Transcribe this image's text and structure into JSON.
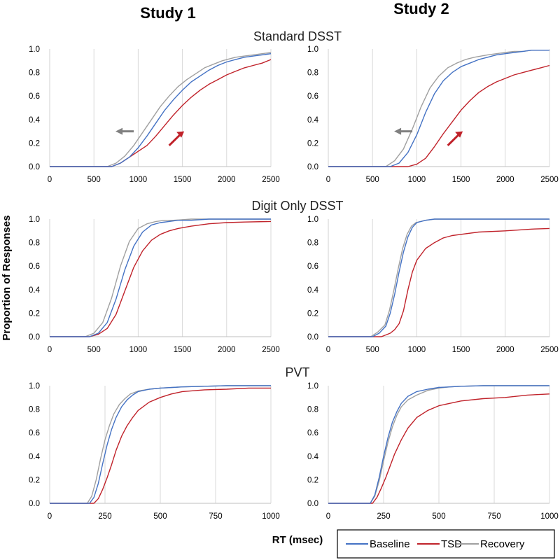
{
  "columns": [
    "Study 1",
    "Study 2"
  ],
  "rows": [
    "Standard DSST",
    "Digit Only DSST",
    "PVT"
  ],
  "y_axis_label": "Proportion of Responses",
  "x_axis_label": "RT (msec)",
  "legend": [
    {
      "name": "Baseline",
      "color": "#4472c4"
    },
    {
      "name": "TSD",
      "color": "#c0222a"
    },
    {
      "name": "Recovery",
      "color": "#a0a0a0"
    }
  ],
  "arrow_colors": {
    "left": "#808080",
    "right": "#c0222a"
  },
  "chart_data": [
    {
      "type": "line",
      "study": "Study 1",
      "title": "Standard DSST",
      "xlim": [
        0,
        2500
      ],
      "ylim": [
        0,
        1
      ],
      "xticks": [
        0,
        500,
        1000,
        1500,
        2000,
        2500
      ],
      "yticks": [
        0.0,
        0.2,
        0.4,
        0.6,
        0.8,
        1.0
      ],
      "arrows": true,
      "series": [
        {
          "name": "Baseline",
          "x": [
            0,
            700,
            800,
            900,
            1000,
            1100,
            1200,
            1300,
            1400,
            1500,
            1600,
            1700,
            1800,
            1900,
            2000,
            2100,
            2200,
            2300,
            2400,
            2500
          ],
          "y": [
            0,
            0,
            0.03,
            0.08,
            0.16,
            0.26,
            0.37,
            0.48,
            0.57,
            0.65,
            0.72,
            0.77,
            0.82,
            0.86,
            0.89,
            0.91,
            0.93,
            0.94,
            0.95,
            0.96
          ]
        },
        {
          "name": "TSD",
          "x": [
            0,
            700,
            800,
            900,
            1000,
            1100,
            1200,
            1300,
            1400,
            1500,
            1600,
            1700,
            1800,
            1900,
            2000,
            2100,
            2200,
            2300,
            2400,
            2500
          ],
          "y": [
            0,
            0,
            0.03,
            0.08,
            0.13,
            0.18,
            0.26,
            0.35,
            0.44,
            0.52,
            0.59,
            0.65,
            0.7,
            0.74,
            0.78,
            0.81,
            0.84,
            0.86,
            0.88,
            0.91
          ]
        },
        {
          "name": "Recovery",
          "x": [
            0,
            650,
            750,
            850,
            950,
            1050,
            1150,
            1250,
            1350,
            1450,
            1550,
            1650,
            1750,
            1850,
            1950,
            2100,
            2200,
            2300,
            2400,
            2500
          ],
          "y": [
            0,
            0,
            0.03,
            0.09,
            0.18,
            0.29,
            0.4,
            0.51,
            0.6,
            0.68,
            0.74,
            0.79,
            0.84,
            0.87,
            0.9,
            0.93,
            0.94,
            0.95,
            0.96,
            0.97
          ]
        }
      ]
    },
    {
      "type": "line",
      "study": "Study 2",
      "title": "Standard DSST",
      "xlim": [
        0,
        2500
      ],
      "ylim": [
        0,
        1
      ],
      "xticks": [
        0,
        500,
        1000,
        1500,
        2000,
        2500
      ],
      "yticks": [
        0.0,
        0.2,
        0.4,
        0.6,
        0.8,
        1.0
      ],
      "arrows": true,
      "series": [
        {
          "name": "Baseline",
          "x": [
            0,
            700,
            800,
            900,
            1000,
            1100,
            1200,
            1300,
            1400,
            1500,
            1600,
            1700,
            1800,
            1900,
            2000,
            2100,
            2200,
            2300,
            2400,
            2500
          ],
          "y": [
            0,
            0,
            0.03,
            0.12,
            0.27,
            0.46,
            0.62,
            0.73,
            0.8,
            0.85,
            0.88,
            0.91,
            0.93,
            0.95,
            0.96,
            0.97,
            0.98,
            0.99,
            0.99,
            0.99
          ]
        },
        {
          "name": "TSD",
          "x": [
            0,
            900,
            1000,
            1100,
            1200,
            1300,
            1400,
            1500,
            1600,
            1700,
            1800,
            1900,
            2000,
            2100,
            2200,
            2300,
            2400,
            2500
          ],
          "y": [
            0,
            0,
            0.02,
            0.07,
            0.17,
            0.28,
            0.38,
            0.48,
            0.56,
            0.63,
            0.68,
            0.72,
            0.75,
            0.78,
            0.8,
            0.82,
            0.84,
            0.86
          ]
        },
        {
          "name": "Recovery",
          "x": [
            0,
            650,
            750,
            850,
            950,
            1050,
            1150,
            1250,
            1350,
            1450,
            1550,
            1650,
            1800,
            1900,
            2000,
            2100,
            2200,
            2300,
            2400,
            2500
          ],
          "y": [
            0,
            0,
            0.05,
            0.15,
            0.32,
            0.51,
            0.67,
            0.77,
            0.84,
            0.88,
            0.91,
            0.93,
            0.95,
            0.96,
            0.97,
            0.98,
            0.98,
            0.99,
            0.99,
            0.99
          ]
        }
      ]
    },
    {
      "type": "line",
      "study": "Study 1",
      "title": "Digit Only DSST",
      "xlim": [
        0,
        2500
      ],
      "ylim": [
        0,
        1
      ],
      "xticks": [
        0,
        500,
        1000,
        1500,
        2000,
        2500
      ],
      "yticks": [
        0.0,
        0.2,
        0.4,
        0.6,
        0.8,
        1.0
      ],
      "arrows": false,
      "series": [
        {
          "name": "Baseline",
          "x": [
            0,
            450,
            550,
            650,
            750,
            850,
            950,
            1050,
            1150,
            1250,
            1350,
            1450,
            1600,
            1800,
            2000,
            2200,
            2500
          ],
          "y": [
            0,
            0,
            0.03,
            0.12,
            0.32,
            0.57,
            0.77,
            0.89,
            0.95,
            0.97,
            0.98,
            0.99,
            0.99,
            1.0,
            1.0,
            1.0,
            1.0
          ]
        },
        {
          "name": "TSD",
          "x": [
            0,
            450,
            550,
            650,
            750,
            850,
            950,
            1050,
            1150,
            1250,
            1350,
            1450,
            1600,
            1800,
            2000,
            2200,
            2500
          ],
          "y": [
            0,
            0,
            0.02,
            0.07,
            0.19,
            0.39,
            0.59,
            0.73,
            0.82,
            0.87,
            0.9,
            0.92,
            0.94,
            0.96,
            0.97,
            0.975,
            0.98
          ]
        },
        {
          "name": "Recovery",
          "x": [
            0,
            400,
            500,
            600,
            700,
            800,
            900,
            1000,
            1100,
            1200,
            1300,
            1400,
            1600,
            1800,
            2000,
            2200,
            2500
          ],
          "y": [
            0,
            0,
            0.03,
            0.12,
            0.33,
            0.6,
            0.81,
            0.92,
            0.96,
            0.98,
            0.99,
            0.99,
            1.0,
            1.0,
            1.0,
            1.0,
            1.0
          ]
        }
      ]
    },
    {
      "type": "line",
      "study": "Study 2",
      "title": "Digit Only DSST",
      "xlim": [
        0,
        2500
      ],
      "ylim": [
        0,
        1
      ],
      "xticks": [
        0,
        500,
        1000,
        1500,
        2000,
        2500
      ],
      "yticks": [
        0.0,
        0.2,
        0.4,
        0.6,
        0.8,
        1.0
      ],
      "arrows": false,
      "series": [
        {
          "name": "Baseline",
          "x": [
            0,
            500,
            575,
            650,
            700,
            750,
            800,
            850,
            900,
            950,
            1000,
            1100,
            1200,
            1400,
            1600,
            1800,
            2000,
            2500
          ],
          "y": [
            0,
            0,
            0.03,
            0.09,
            0.2,
            0.36,
            0.55,
            0.72,
            0.85,
            0.93,
            0.97,
            0.99,
            1.0,
            1.0,
            1.0,
            1.0,
            1.0,
            1.0
          ]
        },
        {
          "name": "TSD",
          "x": [
            0,
            600,
            700,
            750,
            800,
            850,
            900,
            950,
            1000,
            1100,
            1200,
            1300,
            1400,
            1500,
            1700,
            2000,
            2300,
            2500
          ],
          "y": [
            0,
            0,
            0.03,
            0.06,
            0.11,
            0.22,
            0.4,
            0.55,
            0.65,
            0.75,
            0.8,
            0.84,
            0.86,
            0.87,
            0.89,
            0.9,
            0.915,
            0.92
          ]
        },
        {
          "name": "Recovery",
          "x": [
            0,
            480,
            560,
            640,
            690,
            740,
            790,
            840,
            890,
            940,
            990,
            1100,
            1200,
            1400,
            1600,
            1800,
            2000,
            2500
          ],
          "y": [
            0,
            0,
            0.04,
            0.1,
            0.22,
            0.39,
            0.58,
            0.75,
            0.87,
            0.94,
            0.97,
            0.99,
            1.0,
            1.0,
            1.0,
            1.0,
            1.0,
            1.0
          ]
        }
      ]
    },
    {
      "type": "line",
      "study": "Study 1",
      "title": "PVT",
      "xlim": [
        0,
        1000
      ],
      "ylim": [
        0,
        1
      ],
      "xticks": [
        0,
        250,
        500,
        750,
        1000
      ],
      "yticks": [
        0.0,
        0.2,
        0.4,
        0.6,
        0.8,
        1.0
      ],
      "arrows": false,
      "series": [
        {
          "name": "Baseline",
          "x": [
            0,
            180,
            200,
            220,
            240,
            260,
            280,
            300,
            325,
            350,
            375,
            400,
            450,
            500,
            600,
            700,
            800,
            900,
            1000
          ],
          "y": [
            0,
            0,
            0.05,
            0.17,
            0.34,
            0.5,
            0.63,
            0.73,
            0.82,
            0.88,
            0.92,
            0.95,
            0.97,
            0.98,
            0.99,
            0.995,
            1.0,
            1.0,
            1.0
          ]
        },
        {
          "name": "TSD",
          "x": [
            0,
            200,
            220,
            240,
            260,
            280,
            300,
            325,
            350,
            375,
            400,
            450,
            500,
            550,
            600,
            700,
            800,
            900,
            1000
          ],
          "y": [
            0,
            0,
            0.04,
            0.12,
            0.22,
            0.33,
            0.45,
            0.57,
            0.66,
            0.73,
            0.79,
            0.86,
            0.9,
            0.93,
            0.95,
            0.965,
            0.97,
            0.98,
            0.98
          ]
        },
        {
          "name": "Recovery",
          "x": [
            0,
            170,
            190,
            210,
            230,
            250,
            270,
            290,
            315,
            340,
            365,
            400,
            450,
            500,
            600,
            700,
            800,
            900,
            1000
          ],
          "y": [
            0,
            0,
            0.06,
            0.2,
            0.38,
            0.54,
            0.66,
            0.76,
            0.84,
            0.89,
            0.93,
            0.955,
            0.97,
            0.98,
            0.99,
            0.995,
            1.0,
            1.0,
            1.0
          ]
        }
      ]
    },
    {
      "type": "line",
      "study": "Study 2",
      "title": "PVT",
      "xlim": [
        0,
        1000
      ],
      "ylim": [
        0,
        1
      ],
      "xticks": [
        0,
        250,
        500,
        750,
        1000
      ],
      "yticks": [
        0.0,
        0.2,
        0.4,
        0.6,
        0.8,
        1.0
      ],
      "arrows": false,
      "series": [
        {
          "name": "Baseline",
          "x": [
            0,
            190,
            210,
            230,
            250,
            270,
            290,
            310,
            330,
            360,
            400,
            450,
            500,
            550,
            600,
            700,
            800,
            900,
            1000
          ],
          "y": [
            0,
            0,
            0.07,
            0.22,
            0.4,
            0.56,
            0.69,
            0.78,
            0.85,
            0.91,
            0.95,
            0.97,
            0.985,
            0.99,
            0.995,
            1.0,
            1.0,
            1.0,
            1.0
          ]
        },
        {
          "name": "TSD",
          "x": [
            0,
            200,
            220,
            240,
            260,
            280,
            300,
            330,
            360,
            400,
            450,
            500,
            550,
            600,
            700,
            800,
            900,
            1000
          ],
          "y": [
            0,
            0,
            0.05,
            0.13,
            0.22,
            0.32,
            0.42,
            0.54,
            0.64,
            0.73,
            0.79,
            0.83,
            0.85,
            0.87,
            0.89,
            0.9,
            0.92,
            0.93
          ]
        },
        {
          "name": "Recovery",
          "x": [
            0,
            190,
            210,
            230,
            250,
            270,
            290,
            310,
            330,
            360,
            400,
            450,
            500,
            550,
            600,
            700,
            800,
            900,
            1000
          ],
          "y": [
            0,
            0,
            0.06,
            0.19,
            0.36,
            0.52,
            0.65,
            0.75,
            0.82,
            0.88,
            0.92,
            0.96,
            0.98,
            0.99,
            0.995,
            1.0,
            1.0,
            1.0,
            1.0
          ]
        }
      ]
    }
  ]
}
